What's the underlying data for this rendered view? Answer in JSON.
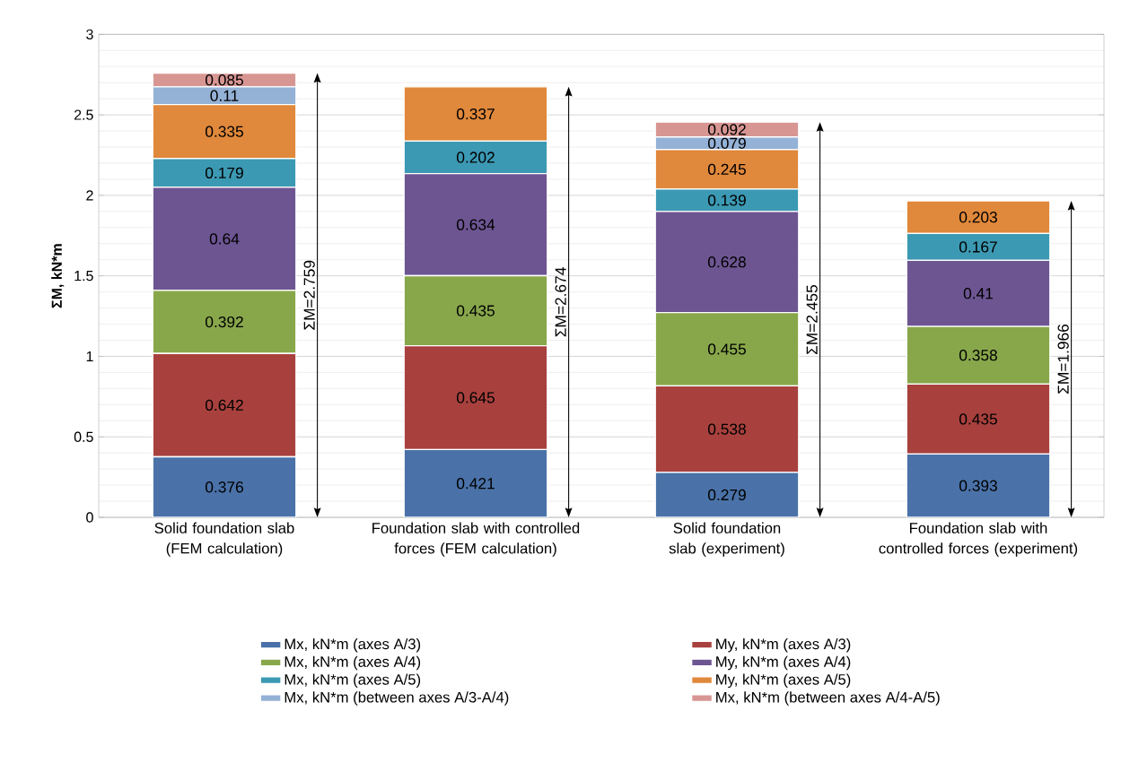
{
  "chart_data": {
    "type": "bar",
    "stacked": true,
    "ylabel": "ΣM, kN*m",
    "categories": [
      "Solid foundation slab (FEM calculation)",
      "Foundation slab with controlled forces (FEM calculation)",
      "Solid foundation slab (experiment)",
      "Foundation slab with controlled forces (experiment)"
    ],
    "series": [
      {
        "name": "Mx, kN*m (axes A/3)",
        "color": "#4a72a8",
        "values": [
          0.376,
          0.421,
          0.279,
          0.393
        ]
      },
      {
        "name": "My, kN*m (axes A/3)",
        "color": "#a8413e",
        "values": [
          0.642,
          0.645,
          0.538,
          0.435
        ]
      },
      {
        "name": "Mx, kN*m (axes A/4)",
        "color": "#88a74b",
        "values": [
          0.392,
          0.435,
          0.455,
          0.358
        ]
      },
      {
        "name": "My, kN*m (axes A/4)",
        "color": "#6d5592",
        "values": [
          0.64,
          0.634,
          0.628,
          0.41
        ]
      },
      {
        "name": "Mx, kN*m (axes A/5)",
        "color": "#3c99b3",
        "values": [
          0.179,
          0.202,
          0.139,
          0.167
        ]
      },
      {
        "name": "My, kN*m (axes A/5)",
        "color": "#e0883b",
        "values": [
          0.335,
          0.337,
          0.245,
          0.203
        ]
      },
      {
        "name": "Mx, kN*m (between axes A/3-A/4)",
        "color": "#94b1d6",
        "values": [
          0.11,
          null,
          0.079,
          null
        ]
      },
      {
        "name": "Mx, kN*m (between axes A/4-A/5)",
        "color": "#d89693",
        "values": [
          0.085,
          null,
          0.092,
          null
        ]
      }
    ],
    "totals": [
      "ΣM=2.759",
      "ΣM=2.674",
      "ΣM=2.455",
      "ΣM=1.966"
    ],
    "data_labels": true,
    "ylim": [
      0,
      3
    ],
    "yticks": [
      0,
      0.5,
      1,
      1.5,
      2,
      2.5,
      3
    ],
    "grid": "y",
    "legend": "bottom"
  }
}
